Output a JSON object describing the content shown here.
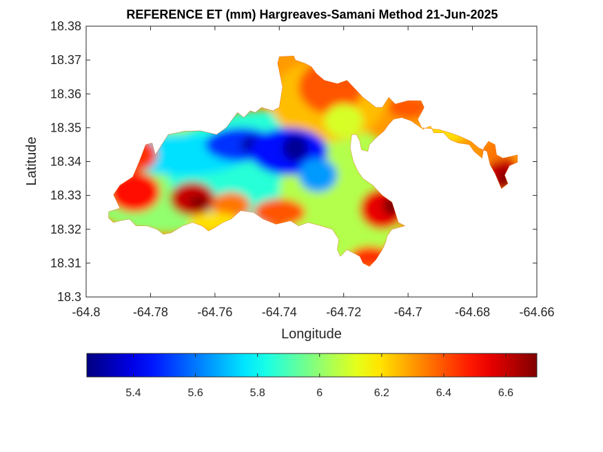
{
  "chart_data": {
    "type": "heatmap",
    "title": "REFERENCE ET (mm) Hargreaves-Samani Method  21-Jun-2025",
    "xlabel": "Longitude",
    "ylabel": "Latitude",
    "xlim": [
      -64.8,
      -64.66
    ],
    "ylim": [
      18.3,
      18.38
    ],
    "x_ticks": [
      -64.8,
      -64.78,
      -64.76,
      -64.74,
      -64.72,
      -64.7,
      -64.68,
      -64.66
    ],
    "x_tick_labels": [
      "-64.8",
      "-64.78",
      "-64.76",
      "-64.74",
      "-64.72",
      "-64.7",
      "-64.68",
      "-64.66"
    ],
    "y_ticks": [
      18.3,
      18.31,
      18.32,
      18.33,
      18.34,
      18.35,
      18.36,
      18.37,
      18.38
    ],
    "y_tick_labels": [
      "18.3",
      "18.31",
      "18.32",
      "18.33",
      "18.34",
      "18.35",
      "18.36",
      "18.37",
      "18.38"
    ],
    "grid": false,
    "colormap": "jet",
    "colorbar": {
      "orientation": "horizontal",
      "position": "below",
      "range": [
        5.25,
        6.7
      ],
      "ticks": [
        5.4,
        5.6,
        5.8,
        6.0,
        6.2,
        6.4,
        6.6
      ],
      "tick_labels": [
        "5.4",
        "5.6",
        "5.8",
        "6",
        "6.2",
        "6.4",
        "6.6"
      ]
    },
    "island_outline": [
      [
        -64.793,
        18.3233
      ],
      [
        -64.793,
        18.3252
      ],
      [
        -64.7895,
        18.3262
      ],
      [
        -64.7915,
        18.3302
      ],
      [
        -64.7895,
        18.333
      ],
      [
        -64.7855,
        18.3355
      ],
      [
        -64.7835,
        18.34
      ],
      [
        -64.7815,
        18.345
      ],
      [
        -64.7795,
        18.3455
      ],
      [
        -64.7785,
        18.342
      ],
      [
        -64.7745,
        18.348
      ],
      [
        -64.7695,
        18.349
      ],
      [
        -64.7645,
        18.3491
      ],
      [
        -64.7595,
        18.348
      ],
      [
        -64.7565,
        18.35
      ],
      [
        -64.753,
        18.3545
      ],
      [
        -64.751,
        18.353
      ],
      [
        -64.749,
        18.355
      ],
      [
        -64.7475,
        18.3545
      ],
      [
        -64.7455,
        18.356
      ],
      [
        -64.742,
        18.355
      ],
      [
        -64.74,
        18.356
      ],
      [
        -64.739,
        18.362
      ],
      [
        -64.7405,
        18.369
      ],
      [
        -64.74,
        18.371
      ],
      [
        -64.7355,
        18.3712
      ],
      [
        -64.735,
        18.37
      ],
      [
        -64.732,
        18.369
      ],
      [
        -64.73,
        18.368
      ],
      [
        -64.7285,
        18.366
      ],
      [
        -64.726,
        18.364
      ],
      [
        -64.722,
        18.363
      ],
      [
        -64.719,
        18.364
      ],
      [
        -64.716,
        18.361
      ],
      [
        -64.714,
        18.359
      ],
      [
        -64.712,
        18.3575
      ],
      [
        -64.71,
        18.356
      ],
      [
        -64.708,
        18.356
      ],
      [
        -64.706,
        18.359
      ],
      [
        -64.704,
        18.357
      ],
      [
        -64.7,
        18.358
      ],
      [
        -64.696,
        18.358
      ],
      [
        -64.695,
        18.356
      ],
      [
        -64.697,
        18.3525
      ],
      [
        -64.6955,
        18.3495
      ],
      [
        -64.693,
        18.3505
      ],
      [
        -64.692,
        18.3485
      ],
      [
        -64.689,
        18.3485
      ],
      [
        -64.687,
        18.3465
      ],
      [
        -64.6845,
        18.3455
      ],
      [
        -64.681,
        18.345
      ],
      [
        -64.6795,
        18.343
      ],
      [
        -64.677,
        18.341
      ],
      [
        -64.6765,
        18.344
      ],
      [
        -64.675,
        18.346
      ],
      [
        -64.673,
        18.345
      ],
      [
        -64.6725,
        18.342
      ],
      [
        -64.6705,
        18.341
      ],
      [
        -64.666,
        18.342
      ],
      [
        -64.666,
        18.3398
      ],
      [
        -64.6685,
        18.3388
      ],
      [
        -64.67,
        18.336
      ],
      [
        -64.669,
        18.3335
      ],
      [
        -64.671,
        18.332
      ],
      [
        -64.673,
        18.3365
      ],
      [
        -64.6745,
        18.339
      ],
      [
        -64.6755,
        18.343
      ],
      [
        -64.678,
        18.344
      ],
      [
        -64.6805,
        18.346
      ],
      [
        -64.684,
        18.3475
      ],
      [
        -64.687,
        18.3485
      ],
      [
        -64.6905,
        18.3495
      ],
      [
        -64.696,
        18.35
      ],
      [
        -64.699,
        18.352
      ],
      [
        -64.702,
        18.353
      ],
      [
        -64.7045,
        18.3525
      ],
      [
        -64.706,
        18.351
      ],
      [
        -64.7075,
        18.349
      ],
      [
        -64.71,
        18.347
      ],
      [
        -64.712,
        18.345
      ],
      [
        -64.7125,
        18.343
      ],
      [
        -64.7145,
        18.3435
      ],
      [
        -64.715,
        18.346
      ],
      [
        -64.716,
        18.348
      ],
      [
        -64.7175,
        18.348
      ],
      [
        -64.718,
        18.344
      ],
      [
        -64.717,
        18.34
      ],
      [
        -64.7155,
        18.337
      ],
      [
        -64.714,
        18.335
      ],
      [
        -64.711,
        18.333
      ],
      [
        -64.708,
        18.33
      ],
      [
        -64.705,
        18.328
      ],
      [
        -64.704,
        18.325
      ],
      [
        -64.703,
        18.322
      ],
      [
        -64.701,
        18.321
      ],
      [
        -64.705,
        18.32
      ],
      [
        -64.7065,
        18.318
      ],
      [
        -64.707,
        18.316
      ],
      [
        -64.708,
        18.314
      ],
      [
        -64.71,
        18.311
      ],
      [
        -64.712,
        18.309
      ],
      [
        -64.714,
        18.31
      ],
      [
        -64.715,
        18.312
      ],
      [
        -64.717,
        18.313
      ],
      [
        -64.719,
        18.314
      ],
      [
        -64.721,
        18.312
      ],
      [
        -64.722,
        18.314
      ],
      [
        -64.7215,
        18.317
      ],
      [
        -64.7235,
        18.32
      ],
      [
        -64.727,
        18.321
      ],
      [
        -64.731,
        18.322
      ],
      [
        -64.734,
        18.321
      ],
      [
        -64.7365,
        18.3225
      ],
      [
        -64.741,
        18.3215
      ],
      [
        -64.745,
        18.323
      ],
      [
        -64.748,
        18.325
      ],
      [
        -64.752,
        18.3255
      ],
      [
        -64.755,
        18.323
      ],
      [
        -64.7575,
        18.322
      ],
      [
        -64.76,
        18.3205
      ],
      [
        -64.762,
        18.3195
      ],
      [
        -64.764,
        18.321
      ],
      [
        -64.767,
        18.322
      ],
      [
        -64.77,
        18.321
      ],
      [
        -64.7735,
        18.319
      ],
      [
        -64.776,
        18.3185
      ],
      [
        -64.778,
        18.32
      ],
      [
        -64.781,
        18.321
      ],
      [
        -64.7845,
        18.321
      ],
      [
        -64.7865,
        18.323
      ],
      [
        -64.7895,
        18.3225
      ],
      [
        -64.7915,
        18.322
      ]
    ],
    "field_blobs": [
      {
        "lon": -64.775,
        "lat": 18.335,
        "r_lon": 0.028,
        "r_lat": 0.016,
        "value": 6.0
      },
      {
        "lon": -64.745,
        "lat": 18.338,
        "r_lon": 0.03,
        "r_lat": 0.017,
        "value": 5.85
      },
      {
        "lon": -64.72,
        "lat": 18.33,
        "r_lon": 0.02,
        "r_lat": 0.02,
        "value": 6.05
      },
      {
        "lon": -64.725,
        "lat": 18.358,
        "r_lon": 0.018,
        "r_lat": 0.012,
        "value": 6.25
      },
      {
        "lon": -64.77,
        "lat": 18.342,
        "r_lon": 0.02,
        "r_lat": 0.006,
        "value": 5.75
      },
      {
        "lon": -64.752,
        "lat": 18.345,
        "r_lon": 0.011,
        "r_lat": 0.005,
        "value": 5.5
      },
      {
        "lon": -64.748,
        "lat": 18.345,
        "r_lon": 0.004,
        "r_lat": 0.0025,
        "value": 5.3
      },
      {
        "lon": -64.737,
        "lat": 18.343,
        "r_lon": 0.012,
        "r_lat": 0.007,
        "value": 5.45
      },
      {
        "lon": -64.735,
        "lat": 18.344,
        "r_lon": 0.004,
        "r_lat": 0.004,
        "value": 5.28
      },
      {
        "lon": -64.728,
        "lat": 18.336,
        "r_lon": 0.006,
        "r_lat": 0.005,
        "value": 5.65
      },
      {
        "lon": -64.785,
        "lat": 18.331,
        "r_lon": 0.008,
        "r_lat": 0.006,
        "value": 6.5
      },
      {
        "lon": -64.767,
        "lat": 18.329,
        "r_lon": 0.007,
        "r_lat": 0.005,
        "value": 6.6
      },
      {
        "lon": -64.765,
        "lat": 18.328,
        "r_lon": 0.003,
        "r_lat": 0.002,
        "value": 6.7
      },
      {
        "lon": -64.755,
        "lat": 18.327,
        "r_lon": 0.006,
        "r_lat": 0.004,
        "value": 6.35
      },
      {
        "lon": -64.74,
        "lat": 18.325,
        "r_lon": 0.008,
        "r_lat": 0.004,
        "value": 6.4
      },
      {
        "lon": -64.708,
        "lat": 18.326,
        "r_lon": 0.007,
        "r_lat": 0.006,
        "value": 6.55
      },
      {
        "lon": -64.705,
        "lat": 18.327,
        "r_lon": 0.003,
        "r_lat": 0.003,
        "value": 6.7
      },
      {
        "lon": -64.712,
        "lat": 18.312,
        "r_lon": 0.006,
        "r_lat": 0.003,
        "value": 6.45
      },
      {
        "lon": -64.724,
        "lat": 18.362,
        "r_lon": 0.01,
        "r_lat": 0.008,
        "value": 6.4
      },
      {
        "lon": -64.785,
        "lat": 18.342,
        "r_lon": 0.007,
        "r_lat": 0.005,
        "value": 6.45
      },
      {
        "lon": -64.7,
        "lat": 18.356,
        "r_lon": 0.006,
        "r_lat": 0.003,
        "value": 6.4
      },
      {
        "lon": -64.72,
        "lat": 18.352,
        "r_lon": 0.006,
        "r_lat": 0.005,
        "value": 6.1
      },
      {
        "lon": -64.76,
        "lat": 18.322,
        "r_lon": 0.008,
        "r_lat": 0.003,
        "value": 6.2
      },
      {
        "lon": -64.69,
        "lat": 18.348,
        "r_lon": 0.008,
        "r_lat": 0.003,
        "value": 6.2
      },
      {
        "lon": -64.671,
        "lat": 18.337,
        "r_lon": 0.004,
        "r_lat": 0.005,
        "value": 6.6
      },
      {
        "lon": -64.67,
        "lat": 18.335,
        "r_lon": 0.002,
        "r_lat": 0.003,
        "value": 6.7
      },
      {
        "lon": -64.673,
        "lat": 18.343,
        "r_lon": 0.004,
        "r_lat": 0.003,
        "value": 6.35
      }
    ],
    "background_value": 6.3
  }
}
